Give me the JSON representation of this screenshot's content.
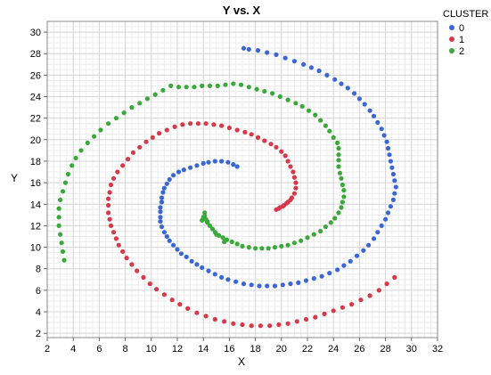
{
  "chart_data": {
    "type": "scatter",
    "title": "Y vs. X",
    "xlabel": "X",
    "ylabel": "Y",
    "xlim": [
      2,
      32
    ],
    "ylim": [
      1.6,
      31
    ],
    "xticks": [
      2,
      4,
      6,
      8,
      10,
      12,
      14,
      16,
      18,
      20,
      22,
      24,
      26,
      28,
      30,
      32
    ],
    "yticks": [
      2,
      4,
      6,
      8,
      10,
      12,
      14,
      16,
      18,
      20,
      22,
      24,
      26,
      28,
      30
    ],
    "minor_step": 0.5,
    "grid": true,
    "legend": {
      "title": "CLUSTER",
      "placement": "right"
    },
    "series": [
      {
        "name": "0",
        "color": "#3a66d6",
        "points": [
          [
            16.6,
            17.5
          ],
          [
            16.3,
            17.7
          ],
          [
            15.9,
            17.9
          ],
          [
            15.4,
            18.0
          ],
          [
            14.9,
            18.0
          ],
          [
            14.4,
            17.9
          ],
          [
            14.0,
            17.8
          ],
          [
            13.5,
            17.6
          ],
          [
            13.0,
            17.4
          ],
          [
            12.5,
            17.2
          ],
          [
            12.1,
            17.0
          ],
          [
            11.7,
            16.7
          ],
          [
            11.4,
            16.3
          ],
          [
            11.2,
            15.9
          ],
          [
            11.0,
            15.5
          ],
          [
            10.9,
            15.1
          ],
          [
            10.8,
            14.6
          ],
          [
            10.8,
            14.2
          ],
          [
            10.7,
            13.7
          ],
          [
            10.7,
            13.3
          ],
          [
            10.7,
            12.8
          ],
          [
            10.7,
            12.4
          ],
          [
            10.8,
            11.9
          ],
          [
            11.0,
            11.4
          ],
          [
            11.2,
            11.0
          ],
          [
            11.4,
            10.6
          ],
          [
            11.7,
            10.2
          ],
          [
            12.0,
            9.8
          ],
          [
            12.3,
            9.4
          ],
          [
            12.7,
            9.1
          ],
          [
            13.1,
            8.7
          ],
          [
            13.5,
            8.4
          ],
          [
            13.9,
            8.1
          ],
          [
            14.4,
            7.8
          ],
          [
            14.9,
            7.5
          ],
          [
            15.4,
            7.2
          ],
          [
            15.9,
            7.0
          ],
          [
            16.5,
            6.8
          ],
          [
            17.1,
            6.6
          ],
          [
            17.7,
            6.5
          ],
          [
            18.3,
            6.4
          ],
          [
            18.9,
            6.4
          ],
          [
            19.5,
            6.4
          ],
          [
            20.1,
            6.5
          ],
          [
            20.7,
            6.6
          ],
          [
            21.3,
            6.7
          ],
          [
            21.9,
            6.9
          ],
          [
            22.5,
            7.1
          ],
          [
            23.1,
            7.3
          ],
          [
            23.7,
            7.6
          ],
          [
            24.3,
            7.9
          ],
          [
            24.8,
            8.3
          ],
          [
            25.3,
            8.7
          ],
          [
            25.8,
            9.2
          ],
          [
            26.3,
            9.7
          ],
          [
            26.7,
            10.2
          ],
          [
            27.1,
            10.8
          ],
          [
            27.4,
            11.4
          ],
          [
            27.7,
            12.0
          ],
          [
            28.0,
            12.6
          ],
          [
            28.2,
            13.2
          ],
          [
            28.4,
            13.8
          ],
          [
            28.6,
            14.4
          ],
          [
            28.7,
            15.0
          ],
          [
            28.8,
            15.6
          ],
          [
            28.7,
            16.2
          ],
          [
            28.6,
            16.8
          ],
          [
            28.5,
            17.4
          ],
          [
            28.4,
            18.0
          ],
          [
            28.3,
            18.6
          ],
          [
            28.2,
            19.2
          ],
          [
            28.1,
            19.8
          ],
          [
            27.9,
            20.4
          ],
          [
            27.7,
            21.0
          ],
          [
            27.4,
            21.6
          ],
          [
            27.1,
            22.2
          ],
          [
            26.8,
            22.7
          ],
          [
            26.4,
            23.3
          ],
          [
            26.0,
            23.8
          ],
          [
            25.6,
            24.3
          ],
          [
            25.1,
            24.8
          ],
          [
            24.6,
            25.2
          ],
          [
            24.1,
            25.6
          ],
          [
            23.5,
            26.0
          ],
          [
            22.9,
            26.4
          ],
          [
            22.3,
            26.7
          ],
          [
            21.7,
            27.0
          ],
          [
            21.0,
            27.3
          ],
          [
            20.3,
            27.6
          ],
          [
            19.6,
            27.9
          ],
          [
            18.9,
            28.1
          ],
          [
            18.2,
            28.3
          ],
          [
            17.5,
            28.4
          ],
          [
            17.1,
            28.5
          ]
        ]
      },
      {
        "name": "1",
        "color": "#d63a4a",
        "points": [
          [
            19.6,
            13.5
          ],
          [
            19.9,
            13.7
          ],
          [
            20.2,
            13.9
          ],
          [
            20.5,
            14.2
          ],
          [
            20.8,
            14.6
          ],
          [
            21.0,
            15.0
          ],
          [
            21.1,
            15.5
          ],
          [
            21.1,
            16.0
          ],
          [
            21.0,
            16.5
          ],
          [
            20.9,
            17.0
          ],
          [
            20.7,
            17.5
          ],
          [
            20.5,
            18.0
          ],
          [
            20.3,
            18.5
          ],
          [
            20.0,
            18.9
          ],
          [
            19.6,
            19.3
          ],
          [
            19.2,
            19.6
          ],
          [
            18.7,
            19.9
          ],
          [
            18.2,
            20.2
          ],
          [
            17.7,
            20.5
          ],
          [
            17.2,
            20.7
          ],
          [
            16.6,
            20.9
          ],
          [
            16.0,
            21.1
          ],
          [
            15.4,
            21.3
          ],
          [
            14.8,
            21.4
          ],
          [
            14.2,
            21.5
          ],
          [
            13.6,
            21.5
          ],
          [
            13.0,
            21.5
          ],
          [
            12.4,
            21.4
          ],
          [
            11.8,
            21.2
          ],
          [
            11.2,
            20.9
          ],
          [
            10.6,
            20.6
          ],
          [
            10.1,
            20.2
          ],
          [
            9.6,
            19.8
          ],
          [
            9.1,
            19.3
          ],
          [
            8.6,
            18.8
          ],
          [
            8.2,
            18.2
          ],
          [
            7.8,
            17.6
          ],
          [
            7.4,
            17.0
          ],
          [
            7.1,
            16.4
          ],
          [
            6.9,
            15.8
          ],
          [
            6.8,
            15.1
          ],
          [
            6.7,
            14.5
          ],
          [
            6.7,
            13.9
          ],
          [
            6.7,
            13.2
          ],
          [
            6.8,
            12.6
          ],
          [
            6.9,
            12.0
          ],
          [
            7.1,
            11.4
          ],
          [
            7.3,
            10.8
          ],
          [
            7.5,
            10.2
          ],
          [
            7.8,
            9.6
          ],
          [
            8.1,
            9.0
          ],
          [
            8.5,
            8.4
          ],
          [
            8.9,
            7.8
          ],
          [
            9.4,
            7.2
          ],
          [
            9.9,
            6.6
          ],
          [
            10.4,
            6.1
          ],
          [
            11.0,
            5.6
          ],
          [
            11.6,
            5.1
          ],
          [
            12.2,
            4.7
          ],
          [
            12.8,
            4.3
          ],
          [
            13.5,
            3.9
          ],
          [
            14.2,
            3.6
          ],
          [
            14.9,
            3.3
          ],
          [
            15.6,
            3.1
          ],
          [
            16.3,
            2.9
          ],
          [
            17.0,
            2.8
          ],
          [
            17.7,
            2.7
          ],
          [
            18.4,
            2.7
          ],
          [
            19.1,
            2.7
          ],
          [
            19.8,
            2.8
          ],
          [
            20.5,
            2.9
          ],
          [
            21.2,
            3.1
          ],
          [
            21.9,
            3.3
          ],
          [
            22.6,
            3.5
          ],
          [
            23.3,
            3.8
          ],
          [
            24.0,
            4.1
          ],
          [
            24.7,
            4.4
          ],
          [
            25.4,
            4.7
          ],
          [
            26.1,
            5.1
          ],
          [
            26.8,
            5.5
          ],
          [
            27.5,
            6.0
          ],
          [
            28.1,
            6.6
          ],
          [
            28.7,
            7.2
          ],
          [
            19.8,
            13.6
          ],
          [
            20.1,
            13.8
          ],
          [
            20.4,
            14.1
          ],
          [
            20.7,
            14.4
          ]
        ]
      },
      {
        "name": "2",
        "color": "#3aa83a",
        "points": [
          [
            14.1,
            13.2
          ],
          [
            14.1,
            12.9
          ],
          [
            14.2,
            12.6
          ],
          [
            14.3,
            12.3
          ],
          [
            14.5,
            12.0
          ],
          [
            14.7,
            11.7
          ],
          [
            14.9,
            11.4
          ],
          [
            15.2,
            11.1
          ],
          [
            15.5,
            10.9
          ],
          [
            15.8,
            10.7
          ],
          [
            16.2,
            10.5
          ],
          [
            16.6,
            10.3
          ],
          [
            17.0,
            10.1
          ],
          [
            17.5,
            10.0
          ],
          [
            18.0,
            9.9
          ],
          [
            18.5,
            9.9
          ],
          [
            19.0,
            9.9
          ],
          [
            19.5,
            10.0
          ],
          [
            20.0,
            10.1
          ],
          [
            20.5,
            10.2
          ],
          [
            21.0,
            10.4
          ],
          [
            21.5,
            10.6
          ],
          [
            22.0,
            10.9
          ],
          [
            22.5,
            11.2
          ],
          [
            23.0,
            11.5
          ],
          [
            23.4,
            11.9
          ],
          [
            23.8,
            12.3
          ],
          [
            24.1,
            12.7
          ],
          [
            24.4,
            13.2
          ],
          [
            24.6,
            13.7
          ],
          [
            24.7,
            14.2
          ],
          [
            24.8,
            14.7
          ],
          [
            24.8,
            15.3
          ],
          [
            24.7,
            15.8
          ],
          [
            24.6,
            16.4
          ],
          [
            24.5,
            16.9
          ],
          [
            24.4,
            17.5
          ],
          [
            24.4,
            18.1
          ],
          [
            24.4,
            18.6
          ],
          [
            24.4,
            19.2
          ],
          [
            24.3,
            19.7
          ],
          [
            24.0,
            20.2
          ],
          [
            23.7,
            20.8
          ],
          [
            23.4,
            21.3
          ],
          [
            23.0,
            21.8
          ],
          [
            22.6,
            22.3
          ],
          [
            22.1,
            22.7
          ],
          [
            21.6,
            23.1
          ],
          [
            21.1,
            23.4
          ],
          [
            20.5,
            23.7
          ],
          [
            19.9,
            24.0
          ],
          [
            19.3,
            24.3
          ],
          [
            18.7,
            24.5
          ],
          [
            18.1,
            24.7
          ],
          [
            17.5,
            24.9
          ],
          [
            16.9,
            25.1
          ],
          [
            16.3,
            25.2
          ],
          [
            15.7,
            25.1
          ],
          [
            15.1,
            25.0
          ],
          [
            14.5,
            25.0
          ],
          [
            13.9,
            25.0
          ],
          [
            13.3,
            24.9
          ],
          [
            12.7,
            24.9
          ],
          [
            12.1,
            24.9
          ],
          [
            11.5,
            25.0
          ],
          [
            10.9,
            24.6
          ],
          [
            10.3,
            24.2
          ],
          [
            9.7,
            23.8
          ],
          [
            9.1,
            23.4
          ],
          [
            8.5,
            23.0
          ],
          [
            7.9,
            22.5
          ],
          [
            7.3,
            22.0
          ],
          [
            6.7,
            21.5
          ],
          [
            6.1,
            20.9
          ],
          [
            5.6,
            20.3
          ],
          [
            5.1,
            19.7
          ],
          [
            4.6,
            19.0
          ],
          [
            4.2,
            18.3
          ],
          [
            3.9,
            17.6
          ],
          [
            3.6,
            16.8
          ],
          [
            3.4,
            16.0
          ],
          [
            3.2,
            15.2
          ],
          [
            3.0,
            14.4
          ],
          [
            2.9,
            13.6
          ],
          [
            2.9,
            12.8
          ],
          [
            2.9,
            12.0
          ],
          [
            3.0,
            11.2
          ],
          [
            3.1,
            10.4
          ],
          [
            3.2,
            9.6
          ],
          [
            3.3,
            8.8
          ],
          [
            14.0,
            12.8
          ],
          [
            14.3,
            12.4
          ],
          [
            13.9,
            12.5
          ],
          [
            15.0,
            11.2
          ],
          [
            15.6,
            10.5
          ]
        ]
      }
    ]
  }
}
